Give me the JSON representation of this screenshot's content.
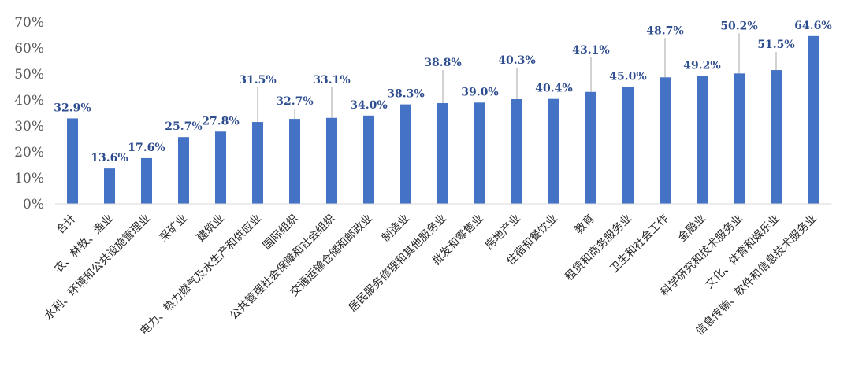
{
  "chart_data": {
    "type": "bar",
    "title": "",
    "xlabel": "",
    "ylabel": "",
    "ylim": [
      0,
      70
    ],
    "yticks": [
      "0%",
      "10%",
      "20%",
      "30%",
      "40%",
      "50%",
      "60%",
      "70%"
    ],
    "grid": false,
    "legend": "none",
    "bar_color": "#4472c4",
    "label_color": "#2e4d8f",
    "categories": [
      "合计",
      "农、林牧、渔业",
      "水利、环境和公共设施管理业",
      "采矿业",
      "建筑业",
      "电力、热力燃气及水生产和供应业",
      "国际组织",
      "公共管理社会保障和社会组织",
      "交通运输仓储和邮政业",
      "制造业",
      "居民服务修理和其他服务业",
      "批发和零售业",
      "房地产业",
      "住宿和餐饮业",
      "教育",
      "租赁和商务服务业",
      "卫生和社会工作",
      "金融业",
      "科学研究和技术服务业",
      "文化、体育和娱乐业",
      "信息传输、软件和信息技术服务业"
    ],
    "values": [
      32.9,
      13.6,
      17.6,
      25.7,
      27.8,
      31.5,
      32.7,
      33.1,
      34.0,
      38.3,
      38.8,
      39.0,
      40.3,
      40.4,
      43.1,
      45.0,
      48.7,
      49.2,
      50.2,
      51.5,
      64.6
    ],
    "data_labels": [
      "32.9%",
      "13.6%",
      "17.6%",
      "25.7%",
      "27.8%",
      "31.5%",
      "32.7%",
      "33.1%",
      "34.0%",
      "38.3%",
      "38.8%",
      "39.0%",
      "40.3%",
      "40.4%",
      "43.1%",
      "45.0%",
      "48.7%",
      "49.2%",
      "50.2%",
      "51.5%",
      "64.6%"
    ]
  }
}
